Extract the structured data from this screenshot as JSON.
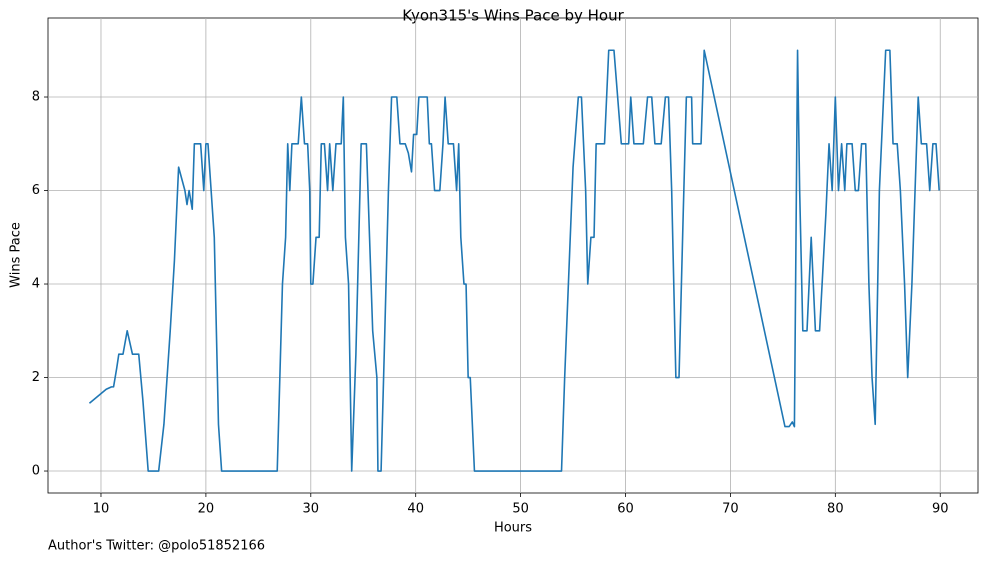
{
  "chart_data": {
    "type": "line",
    "title": "Kyon315's Wins Pace by Hour",
    "x_label": "Hours",
    "y_label": "Wins Pace",
    "annotation": "Author's Twitter: @polo51852166",
    "x": [
      8.9,
      10.5,
      11.0,
      11.2,
      11.5,
      11.7,
      12.1,
      12.5,
      13.0,
      13.6,
      14.0,
      14.5,
      15.5,
      16.0,
      16.6,
      17.0,
      17.4,
      18.0,
      18.2,
      18.4,
      18.7,
      18.9,
      19.5,
      19.8,
      20.0,
      20.2,
      20.8,
      21.2,
      21.5,
      26.8,
      27.3,
      27.6,
      27.8,
      28.0,
      28.2,
      28.8,
      29.1,
      29.4,
      29.7,
      29.9,
      30.0,
      30.2,
      30.5,
      30.8,
      31.0,
      31.3,
      31.6,
      31.8,
      32.1,
      32.4,
      32.7,
      32.9,
      33.1,
      33.3,
      33.6,
      33.9,
      34.3,
      34.8,
      35.3,
      35.6,
      35.9,
      36.3,
      36.4,
      36.7,
      37.0,
      37.4,
      37.7,
      38.2,
      38.5,
      39.0,
      39.3,
      39.6,
      39.8,
      40.1,
      40.3,
      41.1,
      41.3,
      41.5,
      41.8,
      42.3,
      42.6,
      42.8,
      43.1,
      43.6,
      43.9,
      44.1,
      44.3,
      44.6,
      44.8,
      45.0,
      45.2,
      45.6,
      53.9,
      54.2,
      55.0,
      55.5,
      55.8,
      56.2,
      56.4,
      56.7,
      57.0,
      57.2,
      58.0,
      58.4,
      58.9,
      59.6,
      60.3,
      60.5,
      60.8,
      61.7,
      62.1,
      62.5,
      62.8,
      63.4,
      63.8,
      64.1,
      64.4,
      64.8,
      65.1,
      65.5,
      65.8,
      66.3,
      66.4,
      67.2,
      67.5,
      75.2,
      75.6,
      75.9,
      76.1,
      76.4,
      76.6,
      76.9,
      77.3,
      77.7,
      78.1,
      78.5,
      79.1,
      79.4,
      79.7,
      80.0,
      80.3,
      80.6,
      80.9,
      81.1,
      81.6,
      81.9,
      82.2,
      82.5,
      82.9,
      83.2,
      83.5,
      83.8,
      84.2,
      84.6,
      84.8,
      85.2,
      85.5,
      85.9,
      86.2,
      86.6,
      86.9,
      87.3,
      87.6,
      87.9,
      88.2,
      88.7,
      89.0,
      89.3,
      89.6,
      89.9
    ],
    "series": [
      {
        "name": "Wins Pace",
        "color": "#1f77b4",
        "values": [
          1.45,
          1.75,
          1.8,
          1.8,
          2.2,
          2.5,
          2.5,
          3,
          2.5,
          2.5,
          1.5,
          0,
          0,
          1,
          3,
          4.5,
          6.5,
          6,
          5.7,
          6,
          5.6,
          7,
          7,
          6,
          7,
          7,
          5,
          1,
          0,
          0,
          4,
          5,
          7,
          6,
          7,
          7,
          8,
          7,
          7,
          6,
          4,
          4,
          5,
          5,
          7,
          7,
          6,
          7,
          6,
          7,
          7,
          7,
          8,
          5,
          4,
          0,
          2.5,
          7,
          7,
          5,
          3,
          2,
          0,
          0,
          2.5,
          6,
          8,
          8,
          7,
          7,
          6.8,
          6.4,
          7.2,
          7.2,
          8,
          8,
          7,
          7,
          6,
          6,
          7,
          8,
          7,
          7,
          6,
          7,
          5,
          4,
          4,
          2,
          2,
          0,
          0,
          2,
          6.5,
          8,
          8,
          6,
          4,
          5,
          5,
          7,
          7,
          9,
          9,
          7,
          7,
          8,
          7,
          7,
          8,
          8,
          7,
          7,
          8,
          8,
          6,
          2,
          2,
          5.5,
          8,
          8,
          7,
          7,
          9,
          0.95,
          0.95,
          1.05,
          0.95,
          9,
          6,
          3,
          3,
          5,
          3,
          3,
          5.5,
          7,
          6,
          8,
          6,
          7,
          6,
          7,
          7,
          6,
          6,
          7,
          7,
          4,
          2,
          1,
          6,
          8,
          9,
          9,
          7,
          7,
          6,
          4,
          2,
          4,
          6,
          8,
          7,
          7,
          6,
          7,
          7,
          6
        ]
      }
    ],
    "xlim": [
      4.95,
      93.6
    ],
    "ylim": [
      -0.47,
      9.69
    ],
    "xticks": [
      10,
      20,
      30,
      40,
      50,
      60,
      70,
      80,
      90
    ],
    "yticks": [
      0,
      2,
      4,
      6,
      8
    ],
    "grid": true
  }
}
